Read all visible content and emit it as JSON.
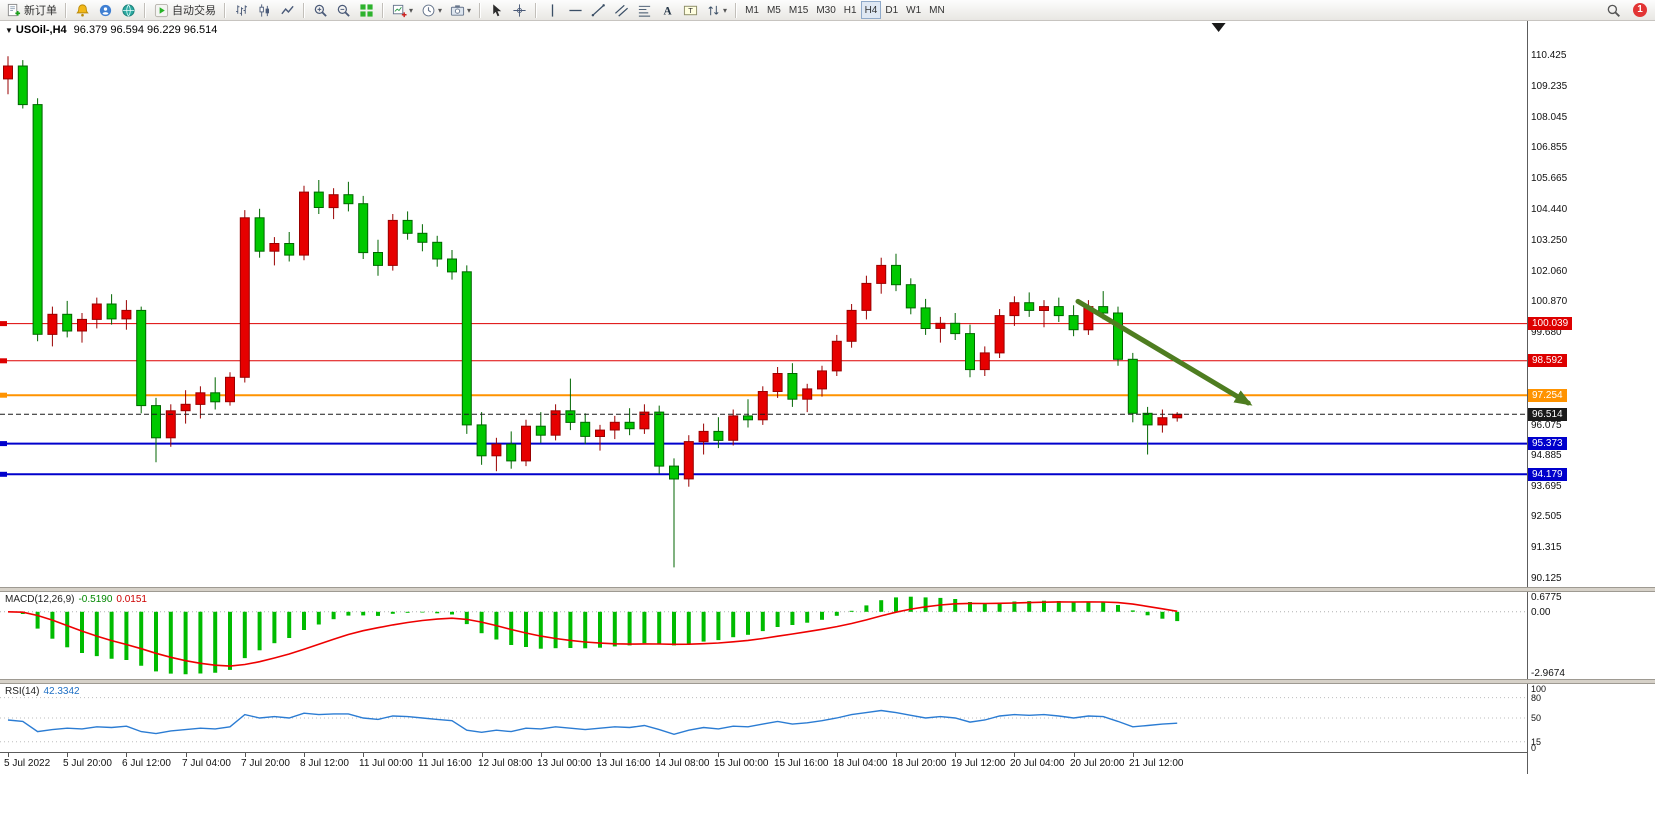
{
  "toolbar": {
    "notification_count": "1",
    "groups": [
      {
        "name": "trade",
        "items": [
          {
            "name": "new-order-button",
            "icon": "new-order",
            "label": "新订单"
          }
        ]
      },
      {
        "name": "services",
        "items": [
          {
            "name": "alerts-button",
            "icon": "bell"
          },
          {
            "name": "community-button",
            "icon": "profile"
          },
          {
            "name": "market-button",
            "icon": "globe"
          }
        ]
      },
      {
        "name": "autotrading",
        "items": [
          {
            "name": "autotrading-button",
            "icon": "play",
            "label": "自动交易"
          }
        ]
      },
      {
        "name": "chart-type",
        "items": [
          {
            "name": "bar-chart-button",
            "icon": "bars"
          },
          {
            "name": "candlestick-chart-button",
            "icon": "candles"
          },
          {
            "name": "line-chart-button",
            "icon": "linechart"
          }
        ]
      },
      {
        "name": "zoom",
        "items": [
          {
            "name": "zoom-in-button",
            "icon": "zoom-in"
          },
          {
            "name": "zoom-out-button",
            "icon": "zoom-out"
          },
          {
            "name": "tile-windows-button",
            "icon": "tile"
          }
        ]
      },
      {
        "name": "window-tools",
        "items": [
          {
            "name": "new-chart-button",
            "icon": "chart-add",
            "dropdown": true
          },
          {
            "name": "period-selector-button",
            "icon": "clock",
            "dropdown": true
          },
          {
            "name": "chart-snapshot-button",
            "icon": "camera",
            "dropdown": true
          }
        ]
      },
      {
        "name": "pointer",
        "items": [
          {
            "name": "cursor-button",
            "icon": "cursor"
          },
          {
            "name": "crosshair-button",
            "icon": "crosshair"
          }
        ]
      },
      {
        "name": "drawing",
        "items": [
          {
            "name": "vertical-line-button",
            "icon": "vline"
          },
          {
            "name": "horizontal-line-button",
            "icon": "hline"
          },
          {
            "name": "trendline-button",
            "icon": "trendline"
          },
          {
            "name": "channel-button",
            "icon": "channel"
          },
          {
            "name": "fibonacci-button",
            "icon": "fibo"
          },
          {
            "name": "text-button",
            "icon": "text"
          },
          {
            "name": "label-button",
            "icon": "label"
          },
          {
            "name": "arrows-button",
            "icon": "arrows",
            "dropdown": true
          }
        ]
      },
      {
        "name": "timeframes",
        "items": [
          {
            "name": "tf-m1",
            "label": "M1"
          },
          {
            "name": "tf-m5",
            "label": "M5"
          },
          {
            "name": "tf-m15",
            "label": "M15"
          },
          {
            "name": "tf-m30",
            "label": "M30"
          },
          {
            "name": "tf-h1",
            "label": "H1"
          },
          {
            "name": "tf-h4",
            "label": "H4",
            "active": true
          },
          {
            "name": "tf-d1",
            "label": "D1"
          },
          {
            "name": "tf-w1",
            "label": "W1"
          },
          {
            "name": "tf-mn",
            "label": "MN"
          }
        ]
      }
    ]
  },
  "chart": {
    "title_symbol": "USOil-,H4",
    "title_ohlc": "96.379 96.594 96.229 96.514",
    "current_price": "96.514",
    "price_axis_labels": [
      "110.425",
      "109.235",
      "108.045",
      "106.855",
      "105.665",
      "104.440",
      "103.250",
      "102.060",
      "100.870",
      "99.680",
      "96.075",
      "94.885",
      "93.695",
      "92.505",
      "91.315",
      "90.125"
    ],
    "shift_marker_bar": 81.8,
    "trend_arrow": {
      "color": "#4e7d20",
      "width": 5,
      "from_bar": 72.3,
      "from_price": 100.9,
      "to_bar": 83.8,
      "to_price": 96.95
    }
  },
  "macd": {
    "name": "MACD(12,26,9)",
    "value_main": "-0.5190",
    "value_signal": "0.0151"
  },
  "rsi": {
    "name": "RSI(14)",
    "value": "42.3342"
  },
  "chart_data": [
    {
      "type": "candlestick",
      "symbol": "USOil-",
      "timeframe": "H4",
      "ylim": [
        89.8,
        111.8
      ],
      "layout": {
        "x0": 8,
        "spacing": 14.8,
        "body_width": 9
      },
      "colors": {
        "up": "#e60000",
        "up_border": "#990000",
        "down": "#00c800",
        "down_border": "#006600"
      },
      "x_label_every": 4,
      "x_labels": [
        "5 Jul 2022",
        "5 Jul 20:00",
        "6 Jul 12:00",
        "7 Jul 04:00",
        "7 Jul 20:00",
        "8 Jul 12:00",
        "11 Jul 00:00",
        "11 Jul 16:00",
        "12 Jul 08:00",
        "13 Jul 00:00",
        "13 Jul 16:00",
        "14 Jul 08:00",
        "15 Jul 00:00",
        "15 Jul 16:00",
        "18 Jul 04:00",
        "18 Jul 20:00",
        "19 Jul 12:00",
        "20 Jul 04:00",
        "20 Jul 20:00",
        "21 Jul 12:00"
      ],
      "price_lines": [
        {
          "price": 100.039,
          "label": "100.039",
          "color": "#dd0000",
          "width": 1,
          "style": "solid"
        },
        {
          "price": 98.592,
          "label": "98.592",
          "color": "#dd0000",
          "width": 1,
          "style": "solid"
        },
        {
          "price": 97.254,
          "label": "97.254",
          "color": "#ff9300",
          "width": 2,
          "style": "solid"
        },
        {
          "price": 96.514,
          "label": "96.514",
          "color": "#1a1a1a",
          "width": 1,
          "style": "dash",
          "is_current_price": true
        },
        {
          "price": 95.373,
          "label": "95.373",
          "color": "#0000cc",
          "width": 2,
          "style": "solid"
        },
        {
          "price": 94.179,
          "label": "94.179",
          "color": "#0000cc",
          "width": 2,
          "style": "solid"
        }
      ],
      "ohlc": [
        [
          109.55,
          110.43,
          108.95,
          110.05
        ],
        [
          110.05,
          110.28,
          108.4,
          108.55
        ],
        [
          108.55,
          108.8,
          99.35,
          99.62
        ],
        [
          99.62,
          100.7,
          99.15,
          100.4
        ],
        [
          100.4,
          100.92,
          99.5,
          99.75
        ],
        [
          99.75,
          100.45,
          99.3,
          100.2
        ],
        [
          100.2,
          101.05,
          99.85,
          100.8
        ],
        [
          100.8,
          101.18,
          100.0,
          100.22
        ],
        [
          100.22,
          100.95,
          99.8,
          100.55
        ],
        [
          100.55,
          100.7,
          96.55,
          96.85
        ],
        [
          96.85,
          97.15,
          94.65,
          95.6
        ],
        [
          95.6,
          96.9,
          95.25,
          96.65
        ],
        [
          96.65,
          97.45,
          96.15,
          96.9
        ],
        [
          96.9,
          97.6,
          96.35,
          97.35
        ],
        [
          97.35,
          97.95,
          96.7,
          97.0
        ],
        [
          97.0,
          98.15,
          96.85,
          97.95
        ],
        [
          97.95,
          104.45,
          97.75,
          104.15
        ],
        [
          104.15,
          104.5,
          102.6,
          102.85
        ],
        [
          102.85,
          103.4,
          102.3,
          103.15
        ],
        [
          103.15,
          103.6,
          102.45,
          102.7
        ],
        [
          102.7,
          105.4,
          102.5,
          105.15
        ],
        [
          105.15,
          105.62,
          104.3,
          104.55
        ],
        [
          104.55,
          105.3,
          104.1,
          105.05
        ],
        [
          105.05,
          105.55,
          104.4,
          104.7
        ],
        [
          104.7,
          105.0,
          102.55,
          102.8
        ],
        [
          102.8,
          103.3,
          101.9,
          102.3
        ],
        [
          102.3,
          104.3,
          102.1,
          104.05
        ],
        [
          104.05,
          104.4,
          103.3,
          103.55
        ],
        [
          103.55,
          103.9,
          102.85,
          103.2
        ],
        [
          103.2,
          103.45,
          102.25,
          102.55
        ],
        [
          102.55,
          102.9,
          101.75,
          102.05
        ],
        [
          102.05,
          102.3,
          95.75,
          96.1
        ],
        [
          96.1,
          96.6,
          94.55,
          94.9
        ],
        [
          94.9,
          95.6,
          94.3,
          95.35
        ],
        [
          95.35,
          95.85,
          94.4,
          94.7
        ],
        [
          94.7,
          96.3,
          94.5,
          96.05
        ],
        [
          96.05,
          96.6,
          95.4,
          95.7
        ],
        [
          95.7,
          96.9,
          95.5,
          96.65
        ],
        [
          96.65,
          97.9,
          95.9,
          96.2
        ],
        [
          96.2,
          96.55,
          95.35,
          95.65
        ],
        [
          95.65,
          96.1,
          95.1,
          95.9
        ],
        [
          95.9,
          96.45,
          95.55,
          96.2
        ],
        [
          96.2,
          96.75,
          95.7,
          95.95
        ],
        [
          95.95,
          96.9,
          95.75,
          96.6
        ],
        [
          96.6,
          96.85,
          94.2,
          94.5
        ],
        [
          94.5,
          94.8,
          90.56,
          94.0
        ],
        [
          94.0,
          95.7,
          93.7,
          95.45
        ],
        [
          95.45,
          96.15,
          94.95,
          95.85
        ],
        [
          95.85,
          96.4,
          95.2,
          95.5
        ],
        [
          95.5,
          96.7,
          95.3,
          96.45
        ],
        [
          96.45,
          97.1,
          96.0,
          96.3
        ],
        [
          96.3,
          97.6,
          96.1,
          97.4
        ],
        [
          97.4,
          98.35,
          97.15,
          98.1
        ],
        [
          98.1,
          98.5,
          96.8,
          97.1
        ],
        [
          97.1,
          97.7,
          96.6,
          97.5
        ],
        [
          97.5,
          98.4,
          97.2,
          98.2
        ],
        [
          98.2,
          99.6,
          98.0,
          99.35
        ],
        [
          99.35,
          100.8,
          99.1,
          100.55
        ],
        [
          100.55,
          101.9,
          100.2,
          101.6
        ],
        [
          101.6,
          102.6,
          101.2,
          102.3
        ],
        [
          102.3,
          102.75,
          101.3,
          101.55
        ],
        [
          101.55,
          101.8,
          100.4,
          100.65
        ],
        [
          100.65,
          101.0,
          99.6,
          99.85
        ],
        [
          99.85,
          100.3,
          99.3,
          100.05
        ],
        [
          100.05,
          100.45,
          99.4,
          99.65
        ],
        [
          99.65,
          100.0,
          97.95,
          98.25
        ],
        [
          98.25,
          99.15,
          98.0,
          98.9
        ],
        [
          98.9,
          100.6,
          98.7,
          100.35
        ],
        [
          100.35,
          101.1,
          99.95,
          100.85
        ],
        [
          100.85,
          101.25,
          100.3,
          100.55
        ],
        [
          100.55,
          100.95,
          99.9,
          100.7
        ],
        [
          100.7,
          101.05,
          100.1,
          100.35
        ],
        [
          100.35,
          100.75,
          99.55,
          99.8
        ],
        [
          99.8,
          100.95,
          99.6,
          100.7
        ],
        [
          100.7,
          101.3,
          100.2,
          100.45
        ],
        [
          100.45,
          100.7,
          98.4,
          98.65
        ],
        [
          98.65,
          98.9,
          96.2,
          96.55
        ],
        [
          96.55,
          96.8,
          94.95,
          96.1
        ],
        [
          96.1,
          96.7,
          95.8,
          96.38
        ],
        [
          96.379,
          96.594,
          96.229,
          96.514
        ]
      ]
    },
    {
      "type": "macd",
      "params": {
        "fast": 12,
        "slow": 26,
        "signal": 9
      },
      "source": "computed from candlestick closes above",
      "colors": {
        "histogram": "#00bb00",
        "signal": "#ee0000"
      },
      "display_values": {
        "main": -0.519,
        "signal": 0.0151
      },
      "axis_labels": [
        "0.6775",
        "0.00",
        "-2.9674"
      ]
    },
    {
      "type": "rsi",
      "params": {
        "period": 14
      },
      "color": "#2b7cd3",
      "levels": [
        80,
        50,
        15
      ],
      "axis_labels": [
        "100",
        "80",
        "50",
        "15",
        "0"
      ],
      "current": 42.3342,
      "values": [
        47,
        45,
        30,
        33,
        35,
        34,
        37,
        36,
        38,
        30,
        27,
        31,
        33,
        35,
        34,
        37,
        55,
        50,
        52,
        50,
        57,
        55,
        56,
        56,
        50,
        48,
        53,
        52,
        50,
        48,
        46,
        32,
        29,
        32,
        30,
        35,
        34,
        37,
        35,
        33,
        35,
        37,
        36,
        39,
        33,
        26,
        32,
        36,
        34,
        38,
        37,
        41,
        45,
        41,
        43,
        46,
        50,
        55,
        58,
        61,
        58,
        54,
        50,
        52,
        50,
        44,
        47,
        53,
        55,
        54,
        55,
        53,
        50,
        53,
        52,
        45,
        37,
        39,
        41,
        42.33
      ]
    }
  ]
}
